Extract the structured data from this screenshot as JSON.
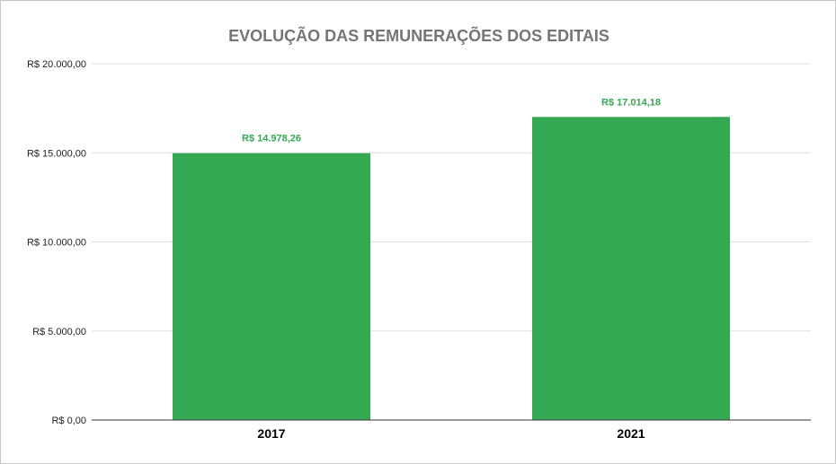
{
  "chart_data": {
    "type": "bar",
    "title": "EVOLUÇÃO DAS REMUNERAÇÕES DOS EDITAIS",
    "xlabel": "",
    "ylabel": "",
    "categories": [
      "2017",
      "2021"
    ],
    "values": [
      14978.26,
      17014.18
    ],
    "data_labels": [
      "R$ 14.978,26",
      "R$ 17.014,18"
    ],
    "ylim": [
      0,
      20000
    ],
    "yticks": [
      0,
      5000,
      10000,
      15000,
      20000
    ],
    "ytick_labels": [
      "R$ 0,00",
      "R$ 5.000,00",
      "R$ 10.000,00",
      "R$ 15.000,00",
      "R$ 20.000,00"
    ],
    "grid": true,
    "legend": "none",
    "colors": {
      "bar": "#34a853",
      "data_label": "#34a853",
      "title": "#757575",
      "grid": "#e0e0e0",
      "axis": "#333333"
    }
  }
}
